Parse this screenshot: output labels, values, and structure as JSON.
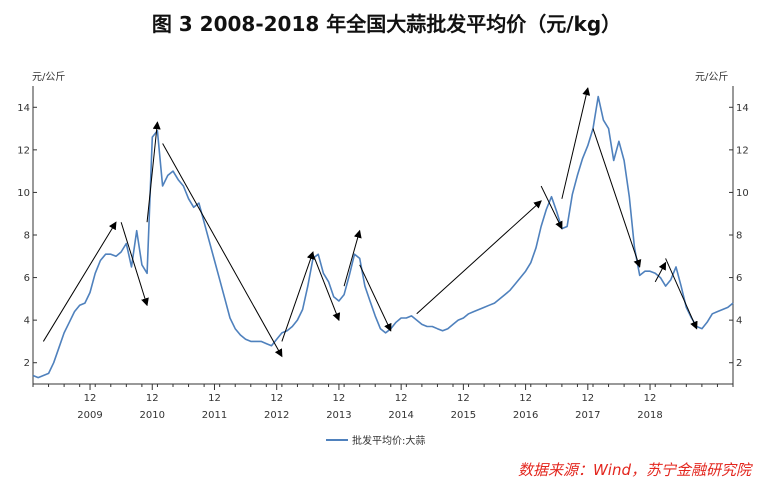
{
  "header": {
    "title": "图 3 2008-2018 年全国大蒜批发平均价（元/kg）"
  },
  "source_note": "数据来源：Wind，苏宁金融研究院",
  "chart_data": {
    "type": "line",
    "title": "图 3 2008-2018 年全国大蒜批发平均价（元/kg）",
    "ylabel_left": "元/公斤",
    "ylabel_right": "元/公斤",
    "ylim": [
      1,
      15
    ],
    "yticks": [
      2,
      4,
      6,
      8,
      10,
      12,
      14
    ],
    "x_axis_year_labels": [
      "2009",
      "2010",
      "2011",
      "2012",
      "2013",
      "2014",
      "2015",
      "2016",
      "2017",
      "2018"
    ],
    "x_axis_month_label": "12",
    "grid": false,
    "legend_position": "bottom-center",
    "series": [
      {
        "name": "批发平均价:大蒜",
        "color": "#4f81bd",
        "points": [
          [
            "2008-01",
            1.4
          ],
          [
            "2008-02",
            1.3
          ],
          [
            "2008-03",
            1.4
          ],
          [
            "2008-04",
            1.5
          ],
          [
            "2008-05",
            2.0
          ],
          [
            "2008-06",
            2.7
          ],
          [
            "2008-07",
            3.4
          ],
          [
            "2008-08",
            3.9
          ],
          [
            "2008-09",
            4.4
          ],
          [
            "2008-10",
            4.7
          ],
          [
            "2008-11",
            4.8
          ],
          [
            "2008-12",
            5.3
          ],
          [
            "2009-01",
            6.2
          ],
          [
            "2009-02",
            6.8
          ],
          [
            "2009-03",
            7.1
          ],
          [
            "2009-04",
            7.1
          ],
          [
            "2009-05",
            7.0
          ],
          [
            "2009-06",
            7.2
          ],
          [
            "2009-07",
            7.6
          ],
          [
            "2009-08",
            6.5
          ],
          [
            "2009-09",
            8.2
          ],
          [
            "2009-10",
            6.6
          ],
          [
            "2009-11",
            6.2
          ],
          [
            "2009-12",
            12.6
          ],
          [
            "2010-01",
            12.9
          ],
          [
            "2010-02",
            10.3
          ],
          [
            "2010-03",
            10.8
          ],
          [
            "2010-04",
            11.0
          ],
          [
            "2010-05",
            10.6
          ],
          [
            "2010-06",
            10.3
          ],
          [
            "2010-07",
            9.7
          ],
          [
            "2010-08",
            9.3
          ],
          [
            "2010-09",
            9.5
          ],
          [
            "2010-10",
            8.6
          ],
          [
            "2010-11",
            7.7
          ],
          [
            "2010-12",
            6.8
          ],
          [
            "2011-01",
            5.9
          ],
          [
            "2011-02",
            5.0
          ],
          [
            "2011-03",
            4.1
          ],
          [
            "2011-04",
            3.6
          ],
          [
            "2011-05",
            3.3
          ],
          [
            "2011-06",
            3.1
          ],
          [
            "2011-07",
            3.0
          ],
          [
            "2011-08",
            3.0
          ],
          [
            "2011-09",
            3.0
          ],
          [
            "2011-10",
            2.9
          ],
          [
            "2011-11",
            2.8
          ],
          [
            "2011-12",
            3.1
          ],
          [
            "2012-01",
            3.4
          ],
          [
            "2012-02",
            3.5
          ],
          [
            "2012-03",
            3.7
          ],
          [
            "2012-04",
            4.0
          ],
          [
            "2012-05",
            4.5
          ],
          [
            "2012-06",
            5.6
          ],
          [
            "2012-07",
            6.9
          ],
          [
            "2012-08",
            7.1
          ],
          [
            "2012-09",
            6.2
          ],
          [
            "2012-10",
            5.8
          ],
          [
            "2012-11",
            5.1
          ],
          [
            "2012-12",
            4.9
          ],
          [
            "2013-01",
            5.2
          ],
          [
            "2013-02",
            6.1
          ],
          [
            "2013-03",
            7.1
          ],
          [
            "2013-04",
            6.9
          ],
          [
            "2013-05",
            5.6
          ],
          [
            "2013-06",
            4.9
          ],
          [
            "2013-07",
            4.2
          ],
          [
            "2013-08",
            3.6
          ],
          [
            "2013-09",
            3.4
          ],
          [
            "2013-10",
            3.6
          ],
          [
            "2013-11",
            3.9
          ],
          [
            "2013-12",
            4.1
          ],
          [
            "2014-01",
            4.1
          ],
          [
            "2014-02",
            4.2
          ],
          [
            "2014-03",
            4.0
          ],
          [
            "2014-04",
            3.8
          ],
          [
            "2014-05",
            3.7
          ],
          [
            "2014-06",
            3.7
          ],
          [
            "2014-07",
            3.6
          ],
          [
            "2014-08",
            3.5
          ],
          [
            "2014-09",
            3.6
          ],
          [
            "2014-10",
            3.8
          ],
          [
            "2014-11",
            4.0
          ],
          [
            "2014-12",
            4.1
          ],
          [
            "2015-01",
            4.3
          ],
          [
            "2015-02",
            4.4
          ],
          [
            "2015-03",
            4.5
          ],
          [
            "2015-04",
            4.6
          ],
          [
            "2015-05",
            4.7
          ],
          [
            "2015-06",
            4.8
          ],
          [
            "2015-07",
            5.0
          ],
          [
            "2015-08",
            5.2
          ],
          [
            "2015-09",
            5.4
          ],
          [
            "2015-10",
            5.7
          ],
          [
            "2015-11",
            6.0
          ],
          [
            "2015-12",
            6.3
          ],
          [
            "2016-01",
            6.7
          ],
          [
            "2016-02",
            7.4
          ],
          [
            "2016-03",
            8.4
          ],
          [
            "2016-04",
            9.2
          ],
          [
            "2016-05",
            9.8
          ],
          [
            "2016-06",
            9.1
          ],
          [
            "2016-07",
            8.3
          ],
          [
            "2016-08",
            8.4
          ],
          [
            "2016-09",
            9.9
          ],
          [
            "2016-10",
            10.8
          ],
          [
            "2016-11",
            11.6
          ],
          [
            "2016-12",
            12.2
          ],
          [
            "2017-01",
            13.0
          ],
          [
            "2017-02",
            14.5
          ],
          [
            "2017-03",
            13.4
          ],
          [
            "2017-04",
            13.0
          ],
          [
            "2017-05",
            11.5
          ],
          [
            "2017-06",
            12.4
          ],
          [
            "2017-07",
            11.5
          ],
          [
            "2017-08",
            9.8
          ],
          [
            "2017-09",
            7.4
          ],
          [
            "2017-10",
            6.1
          ],
          [
            "2017-11",
            6.3
          ],
          [
            "2017-12",
            6.3
          ],
          [
            "2018-01",
            6.2
          ],
          [
            "2018-02",
            6.0
          ],
          [
            "2018-03",
            5.6
          ],
          [
            "2018-04",
            5.9
          ],
          [
            "2018-05",
            6.5
          ],
          [
            "2018-06",
            5.6
          ],
          [
            "2018-07",
            4.6
          ],
          [
            "2018-08",
            4.1
          ],
          [
            "2018-09",
            3.7
          ],
          [
            "2018-10",
            3.6
          ],
          [
            "2018-11",
            3.9
          ],
          [
            "2018-12",
            4.3
          ],
          [
            "2019-01",
            4.4
          ],
          [
            "2019-02",
            4.5
          ],
          [
            "2019-03",
            4.6
          ],
          [
            "2019-04",
            4.8
          ]
        ]
      }
    ],
    "trend_arrows": [
      {
        "from": [
          "2008-03",
          3.0
        ],
        "to": [
          "2009-05",
          8.6
        ]
      },
      {
        "from": [
          "2009-06",
          8.6
        ],
        "to": [
          "2009-11",
          4.7
        ]
      },
      {
        "from": [
          "2009-11",
          8.6
        ],
        "to": [
          "2010-01",
          13.3
        ]
      },
      {
        "from": [
          "2010-02",
          12.3
        ],
        "to": [
          "2012-01",
          2.3
        ]
      },
      {
        "from": [
          "2012-01",
          3.0
        ],
        "to": [
          "2012-07",
          7.2
        ]
      },
      {
        "from": [
          "2012-07",
          7.1
        ],
        "to": [
          "2012-12",
          4.0
        ]
      },
      {
        "from": [
          "2013-01",
          5.6
        ],
        "to": [
          "2013-04",
          8.2
        ]
      },
      {
        "from": [
          "2013-04",
          6.6
        ],
        "to": [
          "2013-10",
          3.5
        ]
      },
      {
        "from": [
          "2014-03",
          4.3
        ],
        "to": [
          "2016-03",
          9.6
        ]
      },
      {
        "from": [
          "2016-03",
          10.3
        ],
        "to": [
          "2016-07",
          8.3
        ]
      },
      {
        "from": [
          "2016-07",
          9.7
        ],
        "to": [
          "2016-12",
          14.9
        ]
      },
      {
        "from": [
          "2017-01",
          13.0
        ],
        "to": [
          "2017-10",
          6.5
        ]
      },
      {
        "from": [
          "2018-01",
          5.8
        ],
        "to": [
          "2018-03",
          6.7
        ]
      },
      {
        "from": [
          "2018-03",
          6.9
        ],
        "to": [
          "2018-09",
          3.6
        ]
      }
    ]
  }
}
